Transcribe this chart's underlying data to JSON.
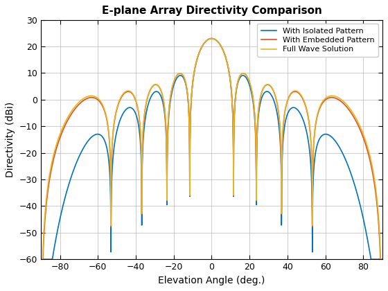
{
  "title": "E-plane Array Directivity Comparison",
  "xlabel": "Elevation Angle (deg.)",
  "ylabel": "Directivity (dBi)",
  "xlim": [
    -90,
    90
  ],
  "ylim": [
    -60,
    30
  ],
  "xticks": [
    -80,
    -60,
    -40,
    -20,
    0,
    20,
    40,
    60,
    80
  ],
  "yticks": [
    -60,
    -50,
    -40,
    -30,
    -20,
    -10,
    0,
    10,
    20,
    30
  ],
  "colors": {
    "isolated": "#0072BD",
    "embedded": "#D95319",
    "fullwave": "#EDB120"
  },
  "legend": [
    "With Isolated Pattern",
    "With Embedded Pattern",
    "Full Wave Solution"
  ],
  "line_width": 1.2,
  "background_color": "#ffffff",
  "grid_color": "#b8b8b8"
}
